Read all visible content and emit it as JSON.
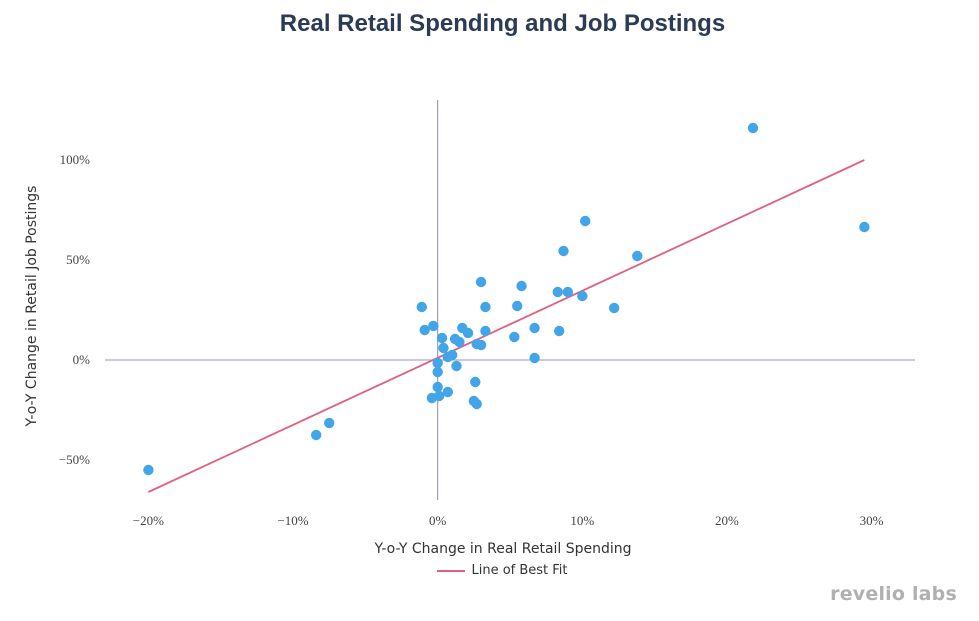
{
  "brand": "revelio labs",
  "chart_data": {
    "type": "scatter",
    "title": "Real Retail Spending and Job Postings",
    "xlabel": "Y-o-Y Change in Real Retail Spending",
    "ylabel": "Y-o-Y Change in Retail Job Postings",
    "xlim": [
      -23,
      33
    ],
    "ylim": [
      -70,
      130
    ],
    "xticks": [
      -20,
      -10,
      0,
      10,
      20,
      30
    ],
    "xtick_labels": [
      "−20%",
      "−10%",
      "0%",
      "10%",
      "20%",
      "30%"
    ],
    "yticks": [
      -50,
      0,
      50,
      100
    ],
    "ytick_labels": [
      "−50%",
      "0%",
      "50%",
      "100%"
    ],
    "legend": [
      {
        "name": "Line of Best Fit",
        "color": "#e06080"
      }
    ],
    "point_color": "#42a5e8",
    "fit_line": {
      "x": [
        -20,
        29.5
      ],
      "y": [
        -66,
        100
      ]
    },
    "points": [
      [
        -20,
        -55
      ],
      [
        -8.4,
        -37.5
      ],
      [
        -7.5,
        -31.5
      ],
      [
        -1.1,
        26.5
      ],
      [
        -0.9,
        15
      ],
      [
        -0.3,
        17
      ],
      [
        -0.4,
        -19
      ],
      [
        0,
        -1.5
      ],
      [
        0,
        -6
      ],
      [
        0,
        -13.5
      ],
      [
        0.1,
        -18
      ],
      [
        0.3,
        11
      ],
      [
        0.4,
        6
      ],
      [
        0.7,
        1.5
      ],
      [
        0.7,
        -16
      ],
      [
        1.0,
        2.5
      ],
      [
        1.2,
        10.5
      ],
      [
        1.3,
        -3
      ],
      [
        1.5,
        9
      ],
      [
        1.7,
        16
      ],
      [
        2.1,
        13.5
      ],
      [
        2.5,
        -20.5
      ],
      [
        2.6,
        -11
      ],
      [
        2.7,
        -22
      ],
      [
        2.7,
        8
      ],
      [
        3.0,
        7.5
      ],
      [
        3.0,
        39
      ],
      [
        3.3,
        26.5
      ],
      [
        3.3,
        14.5
      ],
      [
        5.3,
        11.5
      ],
      [
        5.5,
        27
      ],
      [
        5.8,
        37
      ],
      [
        6.7,
        16
      ],
      [
        6.7,
        1
      ],
      [
        8.3,
        34
      ],
      [
        8.4,
        14.5
      ],
      [
        8.7,
        54.5
      ],
      [
        9.0,
        34
      ],
      [
        10.0,
        32
      ],
      [
        10.2,
        69.5
      ],
      [
        12.2,
        26
      ],
      [
        13.8,
        52
      ],
      [
        21.8,
        116
      ],
      [
        29.5,
        66.5
      ]
    ]
  }
}
